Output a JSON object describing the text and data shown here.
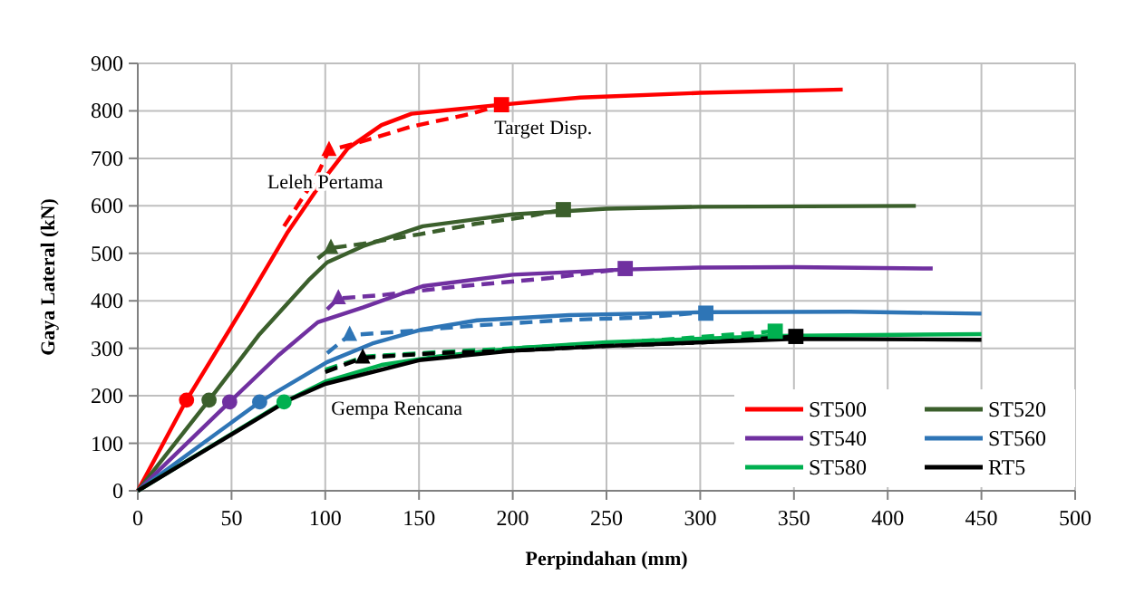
{
  "chart_data": {
    "type": "line",
    "xlabel": "Perpindahan (mm)",
    "ylabel": "Gaya Lateral (kN)",
    "xlim": [
      0,
      500
    ],
    "xticks": [
      0,
      50,
      100,
      150,
      200,
      250,
      300,
      350,
      400,
      450,
      500
    ],
    "ylim": [
      0,
      900
    ],
    "yticks": [
      0,
      100,
      200,
      300,
      400,
      500,
      600,
      700,
      800,
      900
    ],
    "grid": true,
    "legend": "bottom right",
    "marker": "none",
    "annotations": [
      {
        "text": "Target Disp.",
        "x": 194,
        "y": 813
      },
      {
        "text": "Leleh Pertama",
        "x": 102,
        "y": 717
      },
      {
        "text": "Gempa Rencana",
        "x": 78,
        "y": 187
      }
    ],
    "series": [
      {
        "name": "ST500",
        "color": "#ff0000",
        "line_style": "solid",
        "x": [
          0,
          26,
          56,
          80,
          100,
          112,
          130,
          146,
          194,
          236,
          300,
          376
        ],
        "values": [
          0,
          191,
          385,
          545,
          660,
          721,
          770,
          794,
          813,
          828,
          838,
          845
        ]
      },
      {
        "name": "ST520",
        "color": "#3b5f2c",
        "line_style": "solid",
        "x": [
          0,
          38,
          65,
          91,
          101,
          120,
          152,
          200,
          250,
          300,
          415
        ],
        "values": [
          0,
          191,
          330,
          443,
          481,
          515,
          557,
          582,
          594,
          598,
          600
        ]
      },
      {
        "name": "ST540",
        "color": "#7030a0",
        "line_style": "solid",
        "x": [
          0,
          49,
          75,
          96,
          120,
          152,
          200,
          260,
          300,
          350,
          424
        ],
        "values": [
          0,
          187,
          285,
          355,
          386,
          431,
          455,
          466,
          470,
          471,
          468
        ]
      },
      {
        "name": "ST560",
        "color": "#2e75b6",
        "line_style": "solid",
        "x": [
          0,
          65,
          101,
          125,
          152,
          181,
          230,
          303,
          380,
          450
        ],
        "values": [
          0,
          187,
          271,
          310,
          340,
          359,
          370,
          376,
          377,
          373
        ]
      },
      {
        "name": "ST580",
        "color": "#00b050",
        "line_style": "solid",
        "x": [
          0,
          78,
          100,
          130,
          160,
          200,
          250,
          340,
          450
        ],
        "values": [
          0,
          187,
          230,
          265,
          283,
          300,
          313,
          326,
          330
        ]
      },
      {
        "name": "RT5",
        "color": "#000000",
        "line_style": "solid",
        "x": [
          0,
          80,
          100,
          150,
          200,
          250,
          350,
          450
        ],
        "values": [
          0,
          190,
          225,
          275,
          295,
          305,
          320,
          318
        ]
      },
      {
        "color": "#ff0000",
        "line_style": "dashed",
        "x": [
          78,
          95,
          102,
          115,
          146,
          178,
          194
        ],
        "values": [
          557,
          660,
          717,
          730,
          767,
          794,
          813
        ]
      },
      {
        "color": "#3b5f2c",
        "line_style": "dashed",
        "x": [
          96,
          103,
          120,
          150,
          180,
          204,
          227
        ],
        "values": [
          489,
          511,
          520,
          540,
          562,
          575,
          592
        ]
      },
      {
        "color": "#7030a0",
        "line_style": "dashed",
        "x": [
          101,
          107,
          130,
          170,
          220,
          260
        ],
        "values": [
          382,
          405,
          412,
          430,
          448,
          468
        ]
      },
      {
        "color": "#2e75b6",
        "line_style": "dashed",
        "x": [
          101,
          113,
          140,
          180,
          230,
          270,
          303
        ],
        "values": [
          290,
          328,
          335,
          348,
          360,
          365,
          376
        ]
      },
      {
        "color": "#00b050",
        "line_style": "dashed",
        "x": [
          100,
          122,
          160,
          200,
          280,
          340
        ],
        "values": [
          255,
          283,
          292,
          300,
          318,
          336
        ]
      },
      {
        "color": "#000000",
        "line_style": "dashed",
        "x": [
          100,
          120,
          160,
          200,
          250,
          300,
          351
        ],
        "values": [
          250,
          280,
          290,
          295,
          305,
          312,
          325
        ]
      },
      {
        "type": "scatter",
        "marker": "circle",
        "x": [
          26,
          38,
          49,
          65,
          78
        ],
        "values": [
          191,
          191,
          187,
          187,
          187
        ],
        "colors": [
          "#ff0000",
          "#3b5f2c",
          "#7030a0",
          "#2e75b6",
          "#00b050"
        ]
      },
      {
        "type": "scatter",
        "marker": "triangle",
        "x": [
          102,
          103,
          107,
          113,
          120
        ],
        "values": [
          717,
          511,
          405,
          328,
          280
        ],
        "colors": [
          "#ff0000",
          "#3b5f2c",
          "#7030a0",
          "#2e75b6",
          "#000000"
        ]
      },
      {
        "type": "scatter",
        "marker": "square",
        "x": [
          194,
          227,
          260,
          303,
          340,
          351
        ],
        "values": [
          813,
          592,
          468,
          374,
          336,
          325
        ],
        "colors": [
          "#ff0000",
          "#3b5f2c",
          "#7030a0",
          "#2e75b6",
          "#00b050",
          "#000000"
        ]
      }
    ]
  }
}
